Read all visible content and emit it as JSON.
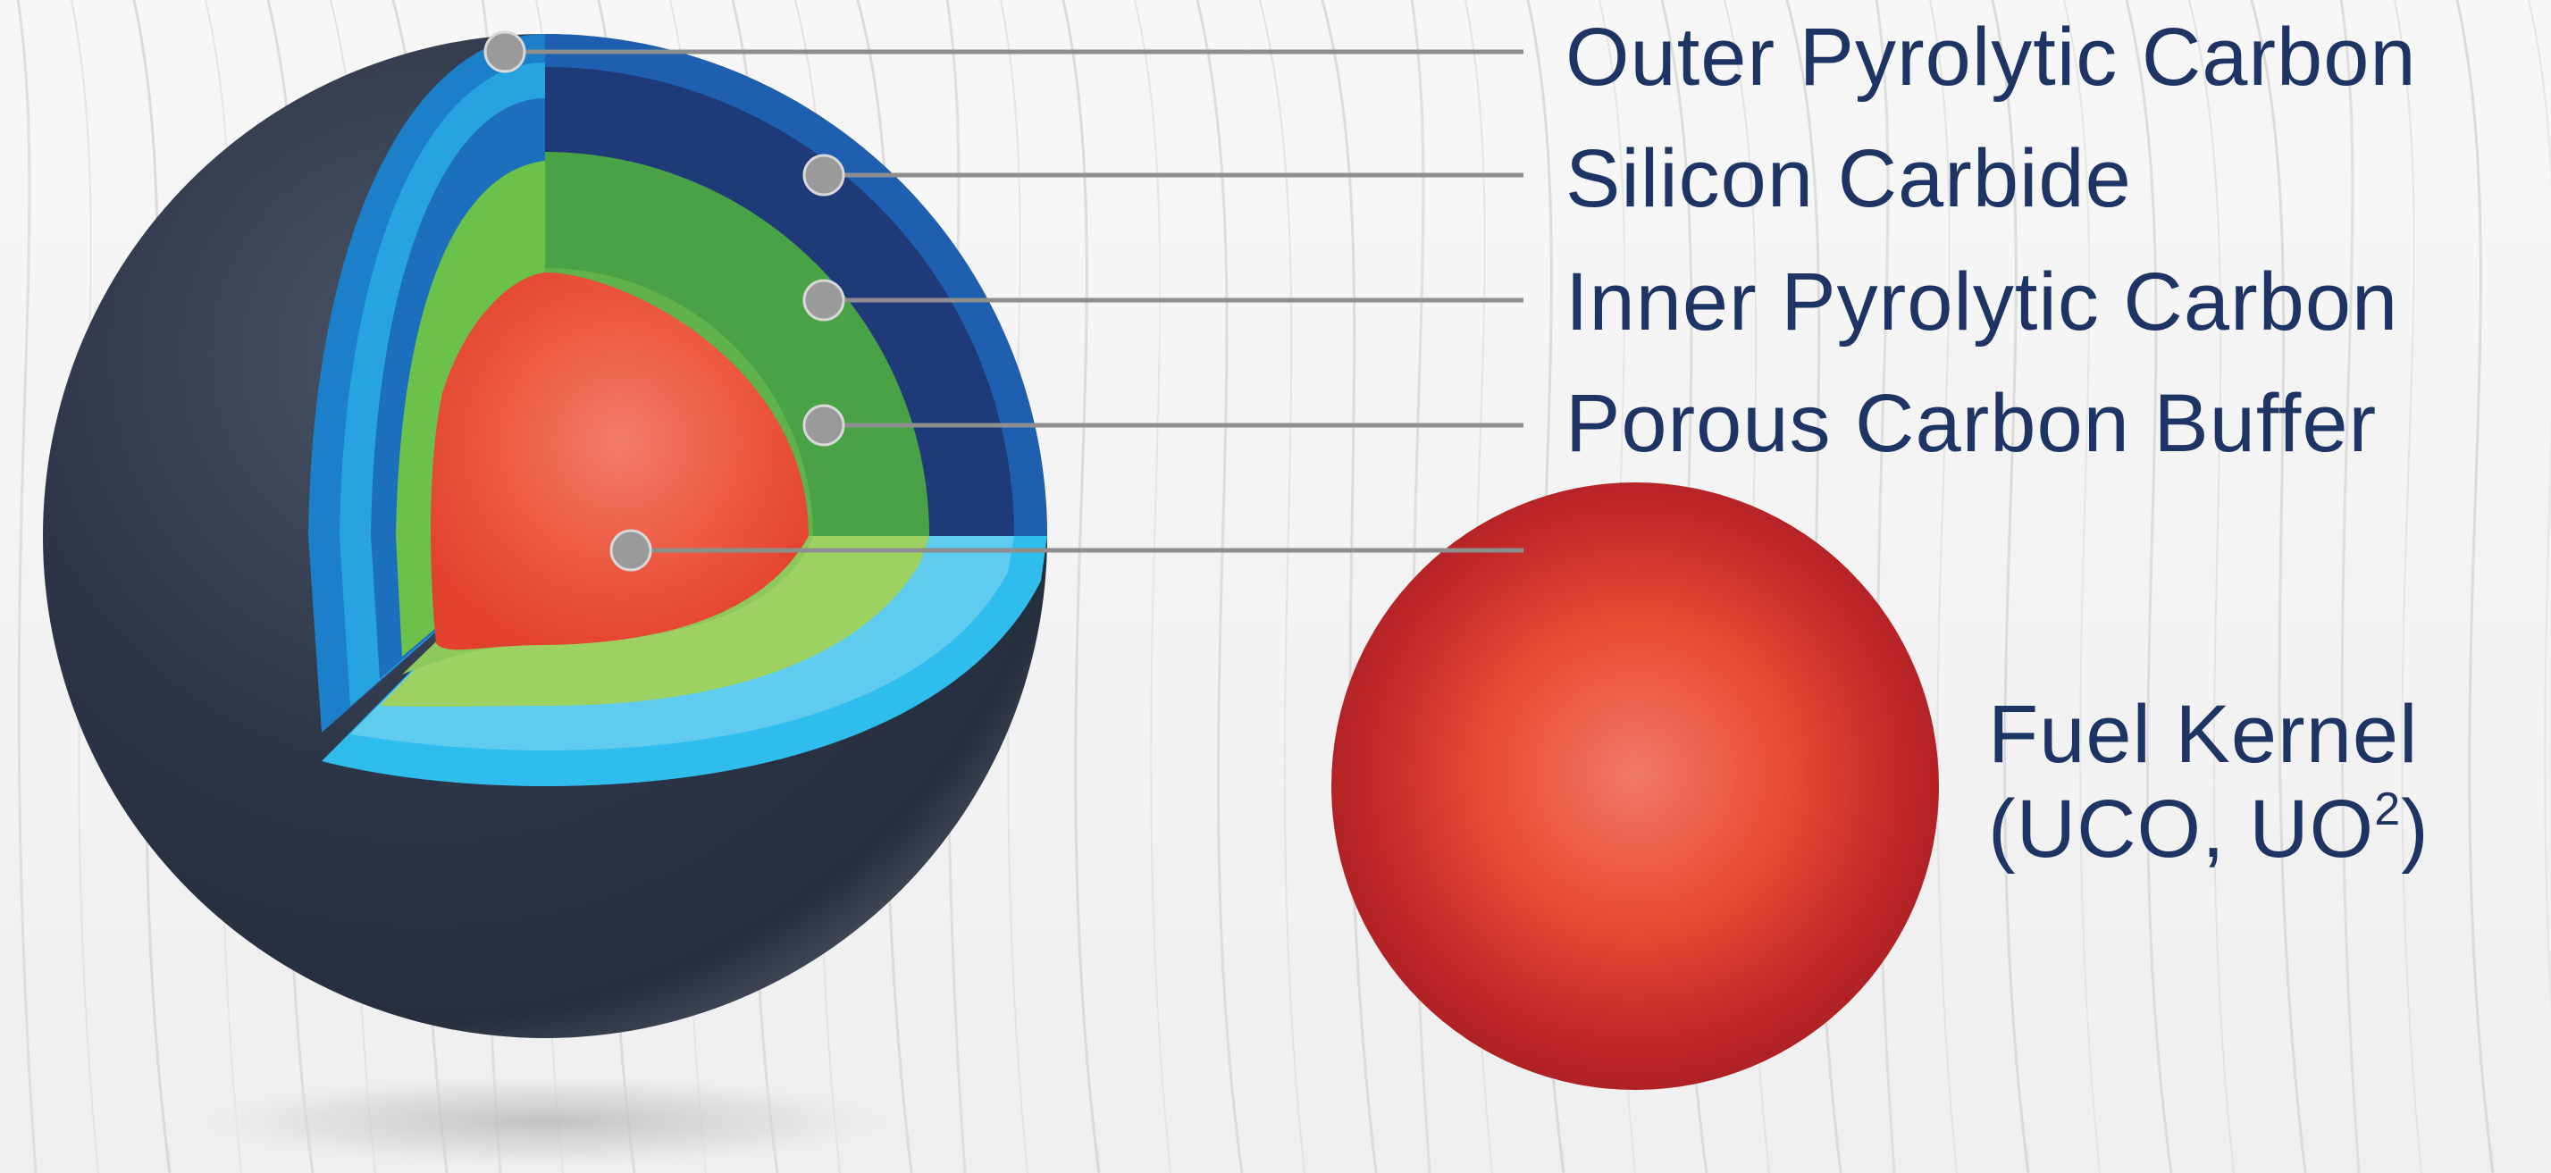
{
  "labels": {
    "outer_pyrolytic_carbon": "Outer Pyrolytic Carbon",
    "silicon_carbide": "Silicon Carbide",
    "inner_pyrolytic_carbon": "Inner Pyrolytic Carbon",
    "porous_carbon_buffer": "Porous Carbon Buffer"
  },
  "fuel_kernel": {
    "title": "Fuel Kernel",
    "formula_prefix": "(UCO, UO",
    "formula_superscript": "2",
    "formula_suffix": ")"
  },
  "colors": {
    "text": "#1e3465",
    "shell": "#2b3445",
    "outer_pyrolytic_carbon": "#1c7fc9",
    "silicon_carbide": "#1e3a78",
    "inner_pyrolytic_carbon": "#4aa246",
    "porous_carbon_buffer": "#6cc14a",
    "kernel": "#e84a33",
    "leader_line": "#8e8e8e"
  }
}
